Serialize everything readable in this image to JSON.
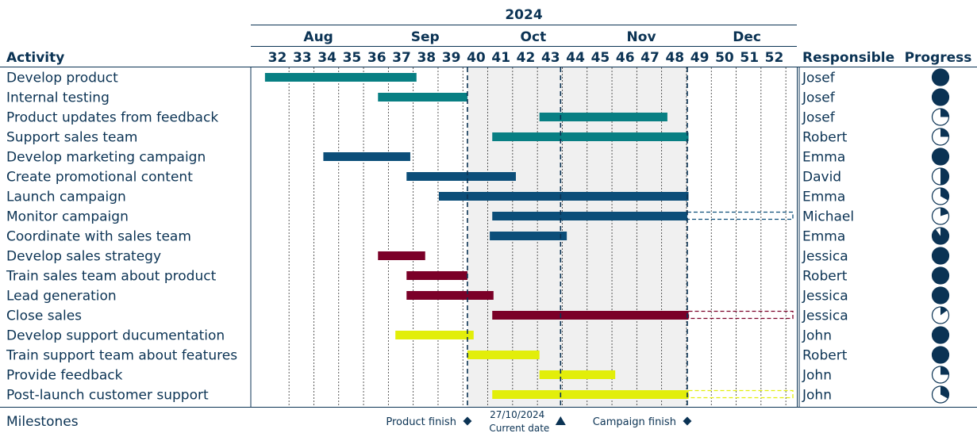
{
  "chart_data": {
    "type": "gantt",
    "year": "2024",
    "months": [
      {
        "label": "Aug",
        "start_week": 31.5,
        "end_week": 35.8
      },
      {
        "label": "Sep",
        "start_week": 35.8,
        "end_week": 40.1
      },
      {
        "label": "Oct",
        "start_week": 40.1,
        "end_week": 44.5
      },
      {
        "label": "Nov",
        "start_week": 44.5,
        "end_week": 48.8
      },
      {
        "label": "Dec",
        "start_week": 48.8,
        "end_week": 53.0
      }
    ],
    "weeks": [
      32,
      33,
      34,
      35,
      36,
      37,
      38,
      39,
      40,
      41,
      42,
      43,
      44,
      45,
      46,
      47,
      48,
      49,
      50,
      51,
      52
    ],
    "headers": {
      "activity": "Activity",
      "responsible": "Responsible",
      "progress": "Progress"
    },
    "highlight_period": {
      "start_week": 39.65,
      "end_week": 48.5
    },
    "activities": [
      {
        "name": "Develop product",
        "responsible": "Josef",
        "start": 31.5,
        "end": 37.6,
        "progress": 1.0,
        "color": "#087f83"
      },
      {
        "name": "Internal testing",
        "responsible": "Josef",
        "start": 36.05,
        "end": 39.65,
        "progress": 1.0,
        "color": "#087f83"
      },
      {
        "name": "Product updates from feedback",
        "responsible": "Josef",
        "start": 42.55,
        "end": 47.7,
        "progress": 0.25,
        "color": "#087f83"
      },
      {
        "name": "Support sales team",
        "responsible": "Robert",
        "start": 40.65,
        "end": 48.55,
        "progress": 0.25,
        "color": "#087f83"
      },
      {
        "name": "Develop marketing campaign",
        "responsible": "Emma",
        "start": 33.85,
        "end": 37.35,
        "progress": 1.0,
        "color": "#0c4e79"
      },
      {
        "name": "Create promotional content",
        "responsible": "David",
        "start": 37.2,
        "end": 41.6,
        "progress": 0.5,
        "color": "#0c4e79"
      },
      {
        "name": "Launch campaign",
        "responsible": "Emma",
        "start": 38.5,
        "end": 48.55,
        "progress": 0.33,
        "color": "#0c4e79"
      },
      {
        "name": "Monitor campaign",
        "responsible": "Michael",
        "start": 40.65,
        "end": 48.5,
        "extended_end": 52.75,
        "progress": 0.2,
        "color": "#0c4e79"
      },
      {
        "name": "Coordinate with sales team",
        "responsible": "Emma",
        "start": 40.55,
        "end": 43.65,
        "progress": 0.9,
        "color": "#0c4e79"
      },
      {
        "name": "Develop sales strategy",
        "responsible": "Jessica",
        "start": 36.05,
        "end": 37.95,
        "progress": 1.0,
        "color": "#7b0028"
      },
      {
        "name": "Train sales team about product",
        "responsible": "Robert",
        "start": 37.2,
        "end": 39.65,
        "progress": 1.0,
        "color": "#7b0028"
      },
      {
        "name": "Lead generation",
        "responsible": "Jessica",
        "start": 37.2,
        "end": 40.7,
        "progress": 1.0,
        "color": "#7b0028"
      },
      {
        "name": "Close sales",
        "responsible": "Jessica",
        "start": 40.65,
        "end": 48.55,
        "extended_end": 52.75,
        "progress": 0.15,
        "color": "#7b0028"
      },
      {
        "name": "Develop support ducumentation",
        "responsible": "John",
        "start": 36.75,
        "end": 39.9,
        "progress": 1.0,
        "color": "#e2ee0a"
      },
      {
        "name": "Train support team about features",
        "responsible": "Robert",
        "start": 39.65,
        "end": 42.55,
        "progress": 1.0,
        "color": "#e2ee0a"
      },
      {
        "name": "Provide feedback",
        "responsible": "John",
        "start": 42.55,
        "end": 45.6,
        "progress": 0.25,
        "color": "#e2ee0a"
      },
      {
        "name": "Post-launch customer support",
        "responsible": "John",
        "start": 40.65,
        "end": 48.55,
        "extended_end": 52.75,
        "progress": 0.33,
        "color": "#e2ee0a"
      }
    ],
    "milestones_label": "Milestones",
    "milestones": [
      {
        "label": "Product finish",
        "week": 39.65,
        "marker": "diamond"
      },
      {
        "label": "27/10/2024",
        "label2": "Current date",
        "week": 43.4,
        "marker": "triangle"
      },
      {
        "label": "Campaign finish",
        "week": 48.5,
        "marker": "diamond"
      }
    ]
  }
}
